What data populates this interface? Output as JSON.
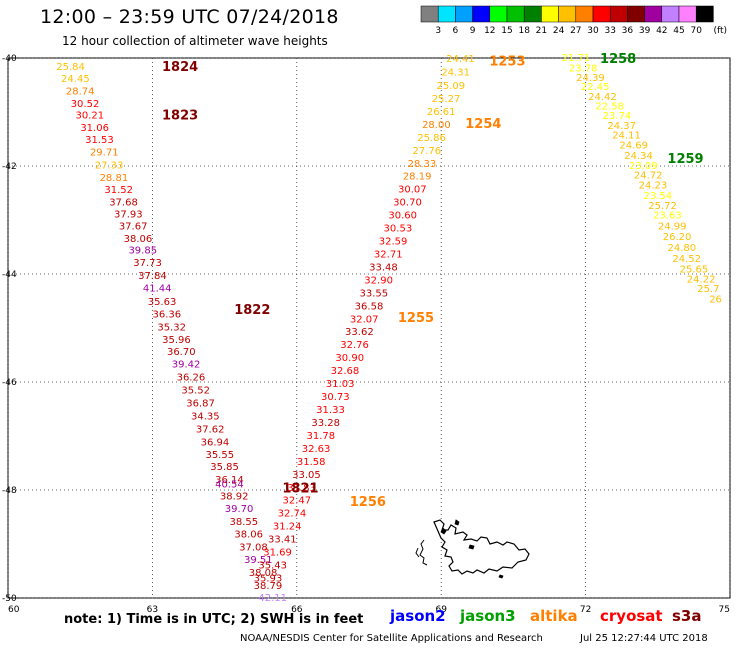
{
  "header": {
    "title": "12:00 – 23:59 UTC 07/24/2018",
    "subtitle": "12 hour collection of altimeter wave heights"
  },
  "legend": {
    "unit": "(ft)",
    "bins": [
      {
        "label": "3",
        "color": "#808080"
      },
      {
        "label": "6",
        "color": "#00e5ff"
      },
      {
        "label": "9",
        "color": "#00a0ff"
      },
      {
        "label": "12",
        "color": "#0000ff"
      },
      {
        "label": "15",
        "color": "#00ff00"
      },
      {
        "label": "18",
        "color": "#00c000"
      },
      {
        "label": "21",
        "color": "#008000"
      },
      {
        "label": "24",
        "color": "#ffff00"
      },
      {
        "label": "27",
        "color": "#ffc000"
      },
      {
        "label": "30",
        "color": "#ff8000"
      },
      {
        "label": "33",
        "color": "#ff0000"
      },
      {
        "label": "36",
        "color": "#c00000"
      },
      {
        "label": "39",
        "color": "#800000"
      },
      {
        "label": "42",
        "color": "#a000a0"
      },
      {
        "label": "45",
        "color": "#c080ff"
      },
      {
        "label": "70",
        "color": "#ff80ff"
      },
      {
        "label": "",
        "color": "#000000"
      }
    ]
  },
  "map": {
    "lat_ticks": [
      {
        "label": "-40",
        "value": -40
      },
      {
        "label": "-42",
        "value": -42
      },
      {
        "label": "-44",
        "value": -44
      },
      {
        "label": "-46",
        "value": -46
      },
      {
        "label": "-48",
        "value": -48
      },
      {
        "label": "-50",
        "value": -50
      }
    ],
    "lon_ticks": [
      {
        "label": "60",
        "value": 60
      },
      {
        "label": "63",
        "value": 63
      },
      {
        "label": "66",
        "value": 66
      },
      {
        "label": "69",
        "value": 69
      },
      {
        "label": "72",
        "value": 72
      },
      {
        "label": "75",
        "value": 75
      }
    ],
    "track_labels": [
      {
        "text": "1824",
        "lon": 63.2,
        "lat": -40.15,
        "color": "#800000"
      },
      {
        "text": "1823",
        "lon": 63.2,
        "lat": -41.05,
        "color": "#800000"
      },
      {
        "text": "1822",
        "lon": 64.7,
        "lat": -44.65,
        "color": "#800000"
      },
      {
        "text": "1821",
        "lon": 65.7,
        "lat": -47.95,
        "color": "#800000"
      },
      {
        "text": "1253",
        "lon": 70.0,
        "lat": -40.05,
        "color": "#ff8000"
      },
      {
        "text": "1254",
        "lon": 69.5,
        "lat": -41.2,
        "color": "#ff8000"
      },
      {
        "text": "1255",
        "lon": 68.1,
        "lat": -44.8,
        "color": "#ff8000"
      },
      {
        "text": "1256",
        "lon": 67.1,
        "lat": -48.2,
        "color": "#ff8000"
      },
      {
        "text": "1258",
        "lon": 72.3,
        "lat": -40.0,
        "color": "#008000"
      },
      {
        "text": "1259",
        "lon": 73.7,
        "lat": -41.85,
        "color": "#008000"
      }
    ],
    "tracks": [
      {
        "name": "track-1821-1824",
        "points": [
          {
            "lon": 61.3,
            "lat": -40.15,
            "v": "25.84",
            "c": "#ffc000"
          },
          {
            "lon": 61.4,
            "lat": -40.37,
            "v": "24.45",
            "c": "#ffc000"
          },
          {
            "lon": 61.5,
            "lat": -40.6,
            "v": "28.74",
            "c": "#ff8000"
          },
          {
            "lon": 61.6,
            "lat": -40.83,
            "v": "30.52",
            "c": "#ff0000"
          },
          {
            "lon": 61.7,
            "lat": -41.05,
            "v": "30.21",
            "c": "#ff0000"
          },
          {
            "lon": 61.8,
            "lat": -41.28,
            "v": "31.06",
            "c": "#ff0000"
          },
          {
            "lon": 61.9,
            "lat": -41.5,
            "v": "31.53",
            "c": "#ff0000"
          },
          {
            "lon": 62.0,
            "lat": -41.73,
            "v": "29.71",
            "c": "#ff8000"
          },
          {
            "lon": 62.1,
            "lat": -41.97,
            "v": "27.33",
            "c": "#ffc000"
          },
          {
            "lon": 62.2,
            "lat": -42.2,
            "v": "28.81",
            "c": "#ff8000"
          },
          {
            "lon": 62.3,
            "lat": -42.43,
            "v": "31.52",
            "c": "#ff0000"
          },
          {
            "lon": 62.4,
            "lat": -42.66,
            "v": "37.68",
            "c": "#c00000"
          },
          {
            "lon": 62.5,
            "lat": -42.88,
            "v": "37.93",
            "c": "#c00000"
          },
          {
            "lon": 62.6,
            "lat": -43.1,
            "v": "37.67",
            "c": "#c00000"
          },
          {
            "lon": 62.7,
            "lat": -43.33,
            "v": "38.06",
            "c": "#c00000"
          },
          {
            "lon": 62.8,
            "lat": -43.55,
            "v": "39.85",
            "c": "#a000a0"
          },
          {
            "lon": 62.9,
            "lat": -43.78,
            "v": "37.73",
            "c": "#c00000"
          },
          {
            "lon": 63.0,
            "lat": -44.02,
            "v": "37.84",
            "c": "#c00000"
          },
          {
            "lon": 63.1,
            "lat": -44.25,
            "v": "41.44",
            "c": "#a000a0"
          },
          {
            "lon": 63.2,
            "lat": -44.5,
            "v": "35.63",
            "c": "#c00000"
          },
          {
            "lon": 63.3,
            "lat": -44.73,
            "v": "36.36",
            "c": "#c00000"
          },
          {
            "lon": 63.4,
            "lat": -44.97,
            "v": "35.32",
            "c": "#c00000"
          },
          {
            "lon": 63.5,
            "lat": -45.2,
            "v": "35.96",
            "c": "#c00000"
          },
          {
            "lon": 63.6,
            "lat": -45.43,
            "v": "36.70",
            "c": "#c00000"
          },
          {
            "lon": 63.7,
            "lat": -45.66,
            "v": "39.42",
            "c": "#a000a0"
          },
          {
            "lon": 63.8,
            "lat": -45.9,
            "v": "36.26",
            "c": "#c00000"
          },
          {
            "lon": 63.9,
            "lat": -46.14,
            "v": "35.52",
            "c": "#c00000"
          },
          {
            "lon": 64.0,
            "lat": -46.38,
            "v": "36.87",
            "c": "#c00000"
          },
          {
            "lon": 64.1,
            "lat": -46.62,
            "v": "34.35",
            "c": "#c00000"
          },
          {
            "lon": 64.2,
            "lat": -46.86,
            "v": "37.62",
            "c": "#c00000"
          },
          {
            "lon": 64.3,
            "lat": -47.1,
            "v": "36.94",
            "c": "#c00000"
          },
          {
            "lon": 64.4,
            "lat": -47.33,
            "v": "35.55",
            "c": "#c00000"
          },
          {
            "lon": 64.5,
            "lat": -47.56,
            "v": "35.85",
            "c": "#c00000"
          },
          {
            "lon": 64.6,
            "lat": -47.8,
            "v": "36.14",
            "c": "#c00000"
          },
          {
            "lon": 64.6,
            "lat": -47.88,
            "v": "40.54",
            "c": "#a000a0"
          },
          {
            "lon": 64.7,
            "lat": -48.1,
            "v": "38.92",
            "c": "#c00000"
          },
          {
            "lon": 64.8,
            "lat": -48.33,
            "v": "39.70",
            "c": "#a000a0"
          },
          {
            "lon": 64.9,
            "lat": -48.57,
            "v": "38.55",
            "c": "#c00000"
          },
          {
            "lon": 65.0,
            "lat": -48.81,
            "v": "38.06",
            "c": "#c00000"
          },
          {
            "lon": 65.1,
            "lat": -49.05,
            "v": "37.08",
            "c": "#c00000"
          },
          {
            "lon": 65.2,
            "lat": -49.28,
            "v": "39.51",
            "c": "#a000a0"
          },
          {
            "lon": 65.3,
            "lat": -49.52,
            "v": "38.08",
            "c": "#c00000"
          },
          {
            "lon": 65.4,
            "lat": -49.76,
            "v": "38.79",
            "c": "#c00000"
          },
          {
            "lon": 65.5,
            "lat": -49.98,
            "v": "42.11",
            "c": "#c080ff"
          }
        ]
      },
      {
        "name": "track-1253-1256",
        "points": [
          {
            "lon": 69.4,
            "lat": -40.0,
            "v": "24.41",
            "c": "#ffc000"
          },
          {
            "lon": 69.3,
            "lat": -40.25,
            "v": "24.31",
            "c": "#ffc000"
          },
          {
            "lon": 69.2,
            "lat": -40.5,
            "v": "25.09",
            "c": "#ffc000"
          },
          {
            "lon": 69.1,
            "lat": -40.74,
            "v": "25.27",
            "c": "#ffc000"
          },
          {
            "lon": 69.0,
            "lat": -40.98,
            "v": "26.61",
            "c": "#ffc000"
          },
          {
            "lon": 68.9,
            "lat": -41.22,
            "v": "28.00",
            "c": "#ff8000"
          },
          {
            "lon": 68.8,
            "lat": -41.46,
            "v": "25.86",
            "c": "#ffc000"
          },
          {
            "lon": 68.7,
            "lat": -41.7,
            "v": "27.76",
            "c": "#ffc000"
          },
          {
            "lon": 68.6,
            "lat": -41.94,
            "v": "28.33",
            "c": "#ff8000"
          },
          {
            "lon": 68.5,
            "lat": -42.18,
            "v": "28.19",
            "c": "#ff8000"
          },
          {
            "lon": 68.4,
            "lat": -42.42,
            "v": "30.07",
            "c": "#ff0000"
          },
          {
            "lon": 68.3,
            "lat": -42.66,
            "v": "30.70",
            "c": "#ff0000"
          },
          {
            "lon": 68.2,
            "lat": -42.9,
            "v": "30.60",
            "c": "#ff0000"
          },
          {
            "lon": 68.1,
            "lat": -43.14,
            "v": "30.53",
            "c": "#ff0000"
          },
          {
            "lon": 68.0,
            "lat": -43.38,
            "v": "32.59",
            "c": "#ff0000"
          },
          {
            "lon": 67.9,
            "lat": -43.62,
            "v": "32.71",
            "c": "#ff0000"
          },
          {
            "lon": 67.8,
            "lat": -43.86,
            "v": "33.48",
            "c": "#c00000"
          },
          {
            "lon": 67.7,
            "lat": -44.1,
            "v": "32.90",
            "c": "#ff0000"
          },
          {
            "lon": 67.6,
            "lat": -44.34,
            "v": "33.55",
            "c": "#c00000"
          },
          {
            "lon": 67.5,
            "lat": -44.58,
            "v": "36.58",
            "c": "#c00000"
          },
          {
            "lon": 67.4,
            "lat": -44.82,
            "v": "32.07",
            "c": "#ff0000"
          },
          {
            "lon": 67.3,
            "lat": -45.06,
            "v": "33.62",
            "c": "#c00000"
          },
          {
            "lon": 67.2,
            "lat": -45.3,
            "v": "32.76",
            "c": "#ff0000"
          },
          {
            "lon": 67.1,
            "lat": -45.54,
            "v": "30.90",
            "c": "#ff0000"
          },
          {
            "lon": 67.0,
            "lat": -45.78,
            "v": "32.68",
            "c": "#ff0000"
          },
          {
            "lon": 66.9,
            "lat": -46.02,
            "v": "31.03",
            "c": "#ff0000"
          },
          {
            "lon": 66.8,
            "lat": -46.26,
            "v": "30.73",
            "c": "#ff0000"
          },
          {
            "lon": 66.7,
            "lat": -46.5,
            "v": "31.33",
            "c": "#ff0000"
          },
          {
            "lon": 66.6,
            "lat": -46.74,
            "v": "33.28",
            "c": "#c00000"
          },
          {
            "lon": 66.5,
            "lat": -46.98,
            "v": "31.78",
            "c": "#ff0000"
          },
          {
            "lon": 66.4,
            "lat": -47.22,
            "v": "32.63",
            "c": "#ff0000"
          },
          {
            "lon": 66.3,
            "lat": -47.46,
            "v": "31.58",
            "c": "#ff0000"
          },
          {
            "lon": 66.2,
            "lat": -47.7,
            "v": "33.05",
            "c": "#c00000"
          },
          {
            "lon": 66.1,
            "lat": -47.94,
            "v": "31.83",
            "c": "#ff0000"
          },
          {
            "lon": 66.0,
            "lat": -48.18,
            "v": "32.47",
            "c": "#ff0000"
          },
          {
            "lon": 65.9,
            "lat": -48.42,
            "v": "32.74",
            "c": "#ff0000"
          },
          {
            "lon": 65.8,
            "lat": -48.66,
            "v": "31.24",
            "c": "#ff0000"
          },
          {
            "lon": 65.7,
            "lat": -48.9,
            "v": "33.41",
            "c": "#c00000"
          },
          {
            "lon": 65.6,
            "lat": -49.14,
            "v": "31.69",
            "c": "#ff0000"
          },
          {
            "lon": 65.5,
            "lat": -49.38,
            "v": "35.43",
            "c": "#c00000"
          },
          {
            "lon": 65.4,
            "lat": -49.62,
            "v": "35.93",
            "c": "#c00000"
          }
        ]
      },
      {
        "name": "track-1258-1259",
        "points": [
          {
            "lon": 71.8,
            "lat": -39.98,
            "v": "21.71",
            "c": "#ffff00"
          },
          {
            "lon": 71.95,
            "lat": -40.18,
            "v": "23.78",
            "c": "#ffff00"
          },
          {
            "lon": 72.1,
            "lat": -40.35,
            "v": "24.39",
            "c": "#ffc000"
          },
          {
            "lon": 72.2,
            "lat": -40.52,
            "v": "22.45",
            "c": "#ffff00"
          },
          {
            "lon": 72.35,
            "lat": -40.7,
            "v": "24.42",
            "c": "#ffc000"
          },
          {
            "lon": 72.5,
            "lat": -40.88,
            "v": "22.58",
            "c": "#ffff00"
          },
          {
            "lon": 72.65,
            "lat": -41.06,
            "v": "23.74",
            "c": "#ffff00"
          },
          {
            "lon": 72.75,
            "lat": -41.24,
            "v": "24.37",
            "c": "#ffc000"
          },
          {
            "lon": 72.85,
            "lat": -41.42,
            "v": "24.11",
            "c": "#ffc000"
          },
          {
            "lon": 73.0,
            "lat": -41.6,
            "v": "24.69",
            "c": "#ffc000"
          },
          {
            "lon": 73.1,
            "lat": -41.8,
            "v": "24.34",
            "c": "#ffc000"
          },
          {
            "lon": 73.2,
            "lat": -41.98,
            "v": "23.09",
            "c": "#ffff00"
          },
          {
            "lon": 73.3,
            "lat": -42.16,
            "v": "24.72",
            "c": "#ffc000"
          },
          {
            "lon": 73.4,
            "lat": -42.34,
            "v": "24.23",
            "c": "#ffc000"
          },
          {
            "lon": 73.5,
            "lat": -42.54,
            "v": "23.54",
            "c": "#ffff00"
          },
          {
            "lon": 73.6,
            "lat": -42.72,
            "v": "25.72",
            "c": "#ffc000"
          },
          {
            "lon": 73.7,
            "lat": -42.9,
            "v": "23.63",
            "c": "#ffff00"
          },
          {
            "lon": 73.8,
            "lat": -43.1,
            "v": "24.99",
            "c": "#ffc000"
          },
          {
            "lon": 73.9,
            "lat": -43.3,
            "v": "26.20",
            "c": "#ffc000"
          },
          {
            "lon": 74.0,
            "lat": -43.5,
            "v": "24.80",
            "c": "#ffc000"
          },
          {
            "lon": 74.1,
            "lat": -43.7,
            "v": "24.52",
            "c": "#ffc000"
          },
          {
            "lon": 74.25,
            "lat": -43.9,
            "v": "25.65",
            "c": "#ffc000"
          },
          {
            "lon": 74.4,
            "lat": -44.08,
            "v": "24.22",
            "c": "#ffc000"
          },
          {
            "lon": 74.55,
            "lat": -44.26,
            "v": "25.7",
            "c": "#ffc000"
          },
          {
            "lon": 74.7,
            "lat": -44.45,
            "v": "26",
            "c": "#ffc000"
          }
        ]
      }
    ]
  },
  "footer": {
    "note": "note:  1) Time is in UTC;  2) SWH is in feet",
    "missions": [
      {
        "name": "jason2",
        "color": "#0000ff"
      },
      {
        "name": "jason3",
        "color": "#00a000"
      },
      {
        "name": "altika",
        "color": "#ff8000"
      },
      {
        "name": "cryosat",
        "color": "#ff0000"
      },
      {
        "name": "s3a",
        "color": "#800000"
      }
    ],
    "credit": "NOAA/NESDIS Center for Satellite Applications and Research",
    "timestamp": "Jul 25 12:27:44 UTC 2018"
  }
}
